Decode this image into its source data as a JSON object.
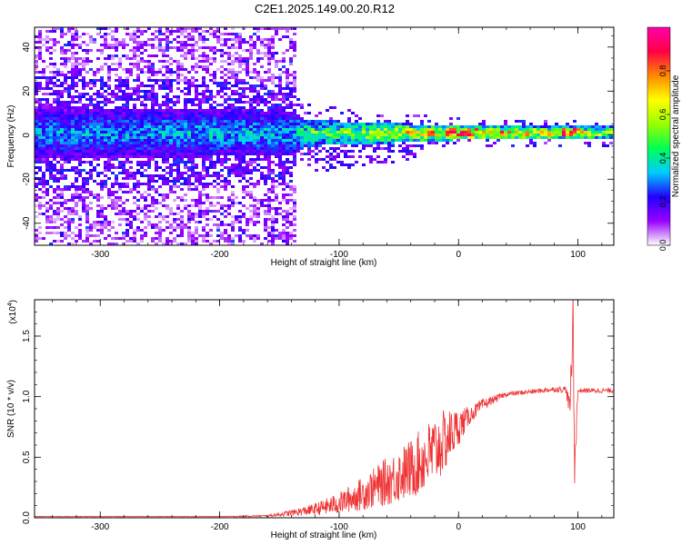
{
  "title": "C2E1.2025.149.00.20.R12",
  "chart_data": [
    {
      "type": "heatmap",
      "xlabel": "Height of straight line (km)",
      "ylabel": "Frequency (Hz)",
      "xlim": [
        -355,
        130
      ],
      "ylim": [
        -50,
        49
      ],
      "xticks": [
        -300,
        -200,
        -100,
        0,
        100
      ],
      "xtick_labels": [
        "-300",
        "-200",
        "-100",
        "0",
        "100"
      ],
      "yticks": [
        -40,
        -20,
        0,
        20,
        40
      ],
      "ytick_labels": [
        "-40",
        "-20",
        "0",
        "20",
        "40"
      ],
      "colorbar": {
        "label": "Normalized spectral amplitude",
        "range": [
          0,
          1
        ],
        "ticks": [
          0.0,
          0.2,
          0.4,
          0.6,
          0.8
        ],
        "tick_labels": [
          "0.0",
          "0.2",
          "0.4",
          "0.6",
          "0.8"
        ],
        "colors": [
          "#ffffff",
          "#9900ff",
          "#2200ff",
          "#00ccff",
          "#00ff55",
          "#99ff00",
          "#ffff00",
          "#ff8800",
          "#ff0044",
          "#ff00aa"
        ]
      },
      "description_points": [
        {
          "x": -355,
          "band_halfwidth_hz": 12,
          "peak_amp": 0.35
        },
        {
          "x": -140,
          "band_halfwidth_hz": 10,
          "peak_amp": 0.4
        },
        {
          "x": -130,
          "band_halfwidth_hz": 6,
          "peak_amp": 0.55
        },
        {
          "x": -30,
          "band_halfwidth_hz": 4,
          "peak_amp": 0.8
        },
        {
          "x": 0,
          "band_halfwidth_hz": 3,
          "peak_amp": 0.9
        },
        {
          "x": 130,
          "band_halfwidth_hz": 3,
          "peak_amp": 0.7
        }
      ]
    },
    {
      "type": "line",
      "xlabel": "Height of straight line (km)",
      "ylabel": "SNR (10 * v/v)",
      "y_multiplier": "(x10",
      "y_multiplier_exp": "4",
      "y_multiplier_close": ")",
      "xlim": [
        -355,
        130
      ],
      "ylim": [
        0,
        1.8
      ],
      "xticks": [
        -300,
        -200,
        -100,
        0,
        100
      ],
      "xtick_labels": [
        "-300",
        "-200",
        "-100",
        "0",
        "100"
      ],
      "yticks": [
        0,
        0.5,
        1.0,
        1.5
      ],
      "ytick_labels": [
        "0.0",
        "0.5",
        "1.0",
        "1.5"
      ],
      "color": "#ee3333",
      "x": [
        -355,
        -300,
        -250,
        -200,
        -160,
        -140,
        -120,
        -100,
        -80,
        -60,
        -40,
        -20,
        -10,
        0,
        10,
        20,
        30,
        40,
        50,
        60,
        70,
        80,
        90,
        93,
        95,
        96,
        97,
        100,
        110,
        120,
        130
      ],
      "y": [
        0.01,
        0.01,
        0.01,
        0.01,
        0.015,
        0.04,
        0.07,
        0.12,
        0.2,
        0.3,
        0.4,
        0.55,
        0.65,
        0.75,
        0.85,
        0.93,
        0.98,
        1.02,
        1.03,
        1.04,
        1.05,
        1.06,
        1.06,
        0.9,
        1.3,
        1.8,
        0.4,
        1.05,
        1.05,
        1.05,
        1.05
      ],
      "noise": [
        0.002,
        0.002,
        0.002,
        0.002,
        0.008,
        0.025,
        0.05,
        0.09,
        0.14,
        0.2,
        0.25,
        0.3,
        0.25,
        0.15,
        0.07,
        0.05,
        0.03,
        0.02,
        0.02,
        0.02,
        0.02,
        0.02,
        0.03,
        0.1,
        0.2,
        0.2,
        0.2,
        0.02,
        0.02,
        0.02,
        0.02
      ]
    }
  ]
}
